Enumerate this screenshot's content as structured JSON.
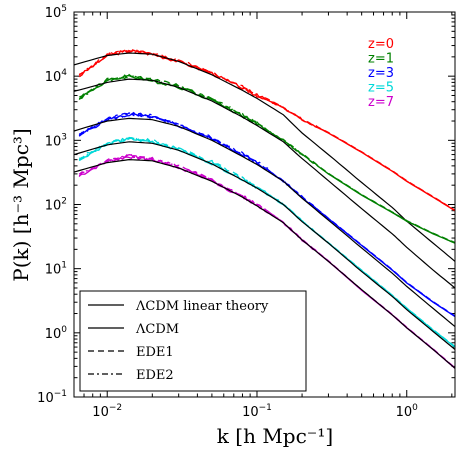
{
  "chart_data": {
    "type": "line",
    "xscale": "log",
    "yscale": "log",
    "xlim": [
      0.006,
      2.1
    ],
    "ylim": [
      0.1,
      100000
    ],
    "xlabel": "k [h Mpc⁻¹]",
    "ylabel": "P(k) [h⁻³ Mpc³]",
    "x_ticks": [
      {
        "value": 0.01,
        "base": "10",
        "exp": "−2"
      },
      {
        "value": 0.1,
        "base": "10",
        "exp": "−1"
      },
      {
        "value": 1,
        "base": "10",
        "exp": "0"
      }
    ],
    "y_ticks": [
      {
        "value": 0.1,
        "base": "10",
        "exp": "−1"
      },
      {
        "value": 1,
        "base": "10",
        "exp": "0"
      },
      {
        "value": 10,
        "base": "10",
        "exp": "1"
      },
      {
        "value": 100,
        "base": "10",
        "exp": "2"
      },
      {
        "value": 1000,
        "base": "10",
        "exp": "3"
      },
      {
        "value": 10000,
        "base": "10",
        "exp": "4"
      },
      {
        "value": 100000,
        "base": "10",
        "exp": "5"
      }
    ],
    "redshift_labels": [
      {
        "text": "z=0",
        "color": "#ff0000"
      },
      {
        "text": "z=1",
        "color": "#008000"
      },
      {
        "text": "z=3",
        "color": "#0000ff"
      },
      {
        "text": "z=5",
        "color": "#00d8d8"
      },
      {
        "text": "z=7",
        "color": "#cc00cc"
      }
    ],
    "legend": {
      "placement": "lower-left",
      "entries": [
        {
          "label": "ΛCDM linear theory",
          "style": "solid"
        },
        {
          "label": "ΛCDM",
          "style": "solid"
        },
        {
          "label": "EDE1",
          "style": "dashed"
        },
        {
          "label": "EDE2",
          "style": "dashdot"
        }
      ]
    },
    "series": [
      {
        "redshift": "z=0",
        "color": "#ff0000",
        "linear_theory": {
          "x": [
            0.006,
            0.01,
            0.014,
            0.02,
            0.03,
            0.05,
            0.08,
            0.1,
            0.15,
            0.2,
            0.3,
            0.5,
            0.8,
            1,
            1.5,
            2.1
          ],
          "y": [
            15000,
            21000,
            23000,
            22000,
            17000,
            10500,
            6000,
            4500,
            2500,
            1300,
            600,
            220,
            90,
            55,
            25,
            13
          ]
        },
        "nonlinear": {
          "x": [
            0.0065,
            0.01,
            0.014,
            0.02,
            0.03,
            0.05,
            0.08,
            0.1,
            0.15,
            0.2,
            0.3,
            0.5,
            0.8,
            1,
            1.5,
            2.1
          ],
          "y": [
            10000,
            21000,
            25000,
            22000,
            17000,
            11000,
            6500,
            5000,
            3200,
            2100,
            1300,
            650,
            330,
            230,
            130,
            80
          ]
        }
      },
      {
        "redshift": "z=1",
        "color": "#008000",
        "linear_theory": {
          "x": [
            0.006,
            0.01,
            0.014,
            0.02,
            0.03,
            0.05,
            0.08,
            0.1,
            0.15,
            0.2,
            0.3,
            0.5,
            0.8,
            1,
            1.5,
            2.1
          ],
          "y": [
            5800,
            8000,
            9000,
            8600,
            6700,
            4100,
            2300,
            1700,
            950,
            520,
            235,
            86,
            35,
            21.5,
            9.5,
            5
          ]
        },
        "nonlinear": {
          "x": [
            0.0065,
            0.01,
            0.014,
            0.02,
            0.03,
            0.05,
            0.08,
            0.1,
            0.15,
            0.2,
            0.3,
            0.5,
            0.8,
            1,
            1.5,
            2.1
          ],
          "y": [
            4500,
            8500,
            10000,
            8500,
            6800,
            4300,
            2400,
            1800,
            1000,
            600,
            300,
            140,
            75,
            55,
            35,
            25
          ]
        }
      },
      {
        "redshift": "z=3",
        "color": "#0000ff",
        "linear_theory": {
          "x": [
            0.006,
            0.01,
            0.014,
            0.02,
            0.03,
            0.05,
            0.08,
            0.1,
            0.15,
            0.2,
            0.3,
            0.5,
            0.8,
            1,
            1.5,
            2.1
          ],
          "y": [
            1400,
            2000,
            2200,
            2100,
            1650,
            1000,
            560,
            420,
            230,
            125,
            57,
            21,
            8.5,
            5.3,
            2.4,
            1.25
          ]
        },
        "nonlinear": {
          "x": [
            0.0065,
            0.01,
            0.014,
            0.02,
            0.03,
            0.05,
            0.08,
            0.1,
            0.15,
            0.2,
            0.3,
            0.5,
            0.8,
            1,
            1.5,
            2.1
          ],
          "y": [
            1200,
            2100,
            2500,
            2300,
            1700,
            1050,
            600,
            450,
            230,
            130,
            60,
            23,
            9.5,
            6,
            3,
            1.8
          ]
        }
      },
      {
        "redshift": "z=5",
        "color": "#00d8d8",
        "linear_theory": {
          "x": [
            0.006,
            0.01,
            0.014,
            0.02,
            0.03,
            0.05,
            0.08,
            0.1,
            0.15,
            0.2,
            0.3,
            0.5,
            0.8,
            1,
            1.5,
            2.1
          ],
          "y": [
            600,
            850,
            950,
            900,
            700,
            430,
            240,
            180,
            100,
            54,
            25,
            9,
            3.7,
            2.3,
            1.05,
            0.55
          ]
        },
        "nonlinear": {
          "x": [
            0.0065,
            0.01,
            0.014,
            0.02,
            0.03,
            0.05,
            0.08,
            0.1,
            0.15,
            0.2,
            0.3,
            0.5,
            0.8,
            1,
            1.5,
            2.1
          ],
          "y": [
            500,
            880,
            1050,
            950,
            720,
            440,
            250,
            185,
            100,
            55,
            25,
            9.3,
            3.8,
            2.4,
            1.1,
            0.6
          ]
        }
      },
      {
        "redshift": "z=7",
        "color": "#cc00cc",
        "linear_theory": {
          "x": [
            0.006,
            0.01,
            0.014,
            0.02,
            0.03,
            0.05,
            0.08,
            0.1,
            0.15,
            0.2,
            0.3,
            0.5,
            0.8,
            1,
            1.5,
            2.1
          ],
          "y": [
            320,
            450,
            500,
            480,
            370,
            230,
            130,
            95,
            52,
            28,
            13,
            4.7,
            1.9,
            1.2,
            0.55,
            0.28
          ]
        },
        "nonlinear": {
          "x": [
            0.0065,
            0.01,
            0.014,
            0.02,
            0.03,
            0.05,
            0.08,
            0.1,
            0.15,
            0.2,
            0.3,
            0.5,
            0.8,
            1,
            1.5,
            2.1
          ],
          "y": [
            280,
            470,
            560,
            500,
            380,
            235,
            130,
            98,
            52,
            28,
            13,
            4.6,
            1.9,
            1.2,
            0.55,
            0.28
          ]
        }
      }
    ]
  }
}
